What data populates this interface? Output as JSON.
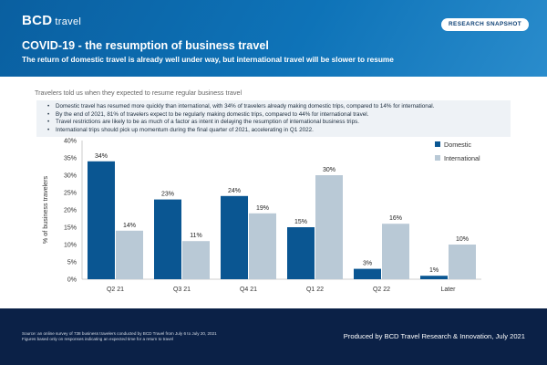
{
  "header": {
    "logo_brand": "BCD",
    "logo_sub": "travel",
    "badge": "RESEARCH SNAPSHOT",
    "title": "COVID-19 - the resumption of business travel",
    "subtitle": "The return of domestic travel is already well under way, but international travel will be slower to resume"
  },
  "intro": "Travelers told us when they expected to resume regular business travel",
  "bullets": [
    "Domestic travel has resumed more quickly than international, with 34% of travelers already making domestic trips, compared to 14% for international.",
    "By the end of 2021, 81% of travelers expect to be regularly making domestic trips, compared to 44% for international travel.",
    "Travel restrictions are likely to be as much of a factor as intent in delaying the resumption of international business trips.",
    "International trips should pick up momentum during the final quarter of 2021, accelerating in Q1 2022."
  ],
  "colors": {
    "header": "#0e73b8",
    "footer": "#0b2147",
    "domestic": "#0a5692",
    "international": "#b9c9d6",
    "grid": "#d9d9d9"
  },
  "chart_data": {
    "type": "bar",
    "categories": [
      "Q2 21",
      "Q3 21",
      "Q4 21",
      "Q1 22",
      "Q2 22",
      "Later"
    ],
    "series": [
      {
        "name": "Domestic",
        "values": [
          34,
          23,
          24,
          15,
          3,
          1
        ]
      },
      {
        "name": "International",
        "values": [
          14,
          11,
          19,
          30,
          16,
          10
        ]
      }
    ],
    "data_labels": [
      [
        "34%",
        "23%",
        "24%",
        "15%",
        "3%",
        "1%"
      ],
      [
        "14%",
        "11%",
        "19%",
        "30%",
        "16%",
        "10%"
      ]
    ],
    "ylabel": "% of business travelers",
    "ylim": [
      0,
      40
    ],
    "yticks": [
      "0%",
      "5%",
      "10%",
      "15%",
      "20%",
      "25%",
      "30%",
      "35%",
      "40%"
    ],
    "grid": false,
    "legend": "top-right"
  },
  "footer": {
    "source_line1": "Source: an online survey of 738 business travelers conducted by BCD Travel from July 6 to July 20, 2021",
    "source_line2": "Figures based only on responses indicating an expected time for a return to travel",
    "produced": "Produced by BCD Travel Research & Innovation, July 2021"
  }
}
